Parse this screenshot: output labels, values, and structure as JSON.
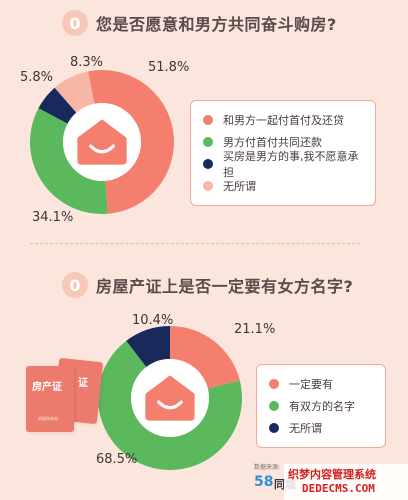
{
  "q1": {
    "badge": "0",
    "question": "您是否愿意和男方共同奋斗购房?"
  },
  "q2": {
    "badge": "0",
    "question": "房屋产证上是否一定要有女方名字?"
  },
  "chart_data": [
    {
      "type": "pie",
      "title": "您是否愿意和男方共同奋斗购房?",
      "categories": [
        "和男方一起付首付及还贷",
        "男方付首付共同还款",
        "买房是男方的事,我不愿意承担",
        "无所谓"
      ],
      "values": [
        51.8,
        34.1,
        5.8,
        8.3
      ],
      "labels": [
        "51.8%",
        "34.1%",
        "5.8%",
        "8.3%"
      ],
      "colors": [
        "#f57f6e",
        "#5cb85c",
        "#18295c",
        "#f7b6a6"
      ],
      "legend": "right"
    },
    {
      "type": "pie",
      "title": "房屋产证上是否一定要有女方名字?",
      "categories": [
        "一定要有",
        "有双方的名字",
        "无所谓"
      ],
      "values": [
        21.1,
        68.5,
        10.4
      ],
      "labels": [
        "21.1%",
        "68.5%",
        "10.4%"
      ],
      "colors": [
        "#f57f6e",
        "#5cb85c",
        "#18295c"
      ],
      "legend": "right"
    }
  ],
  "decor": {
    "card_label_1": "房产证",
    "card_label_2": "证",
    "card_small": "房屋所有权"
  },
  "source": {
    "caption": "数据来源:",
    "brand_num": "58",
    "brand_name": "同城"
  },
  "watermark": {
    "line1": "织梦内容管理系统",
    "line2": "DEDECMS.COM"
  }
}
